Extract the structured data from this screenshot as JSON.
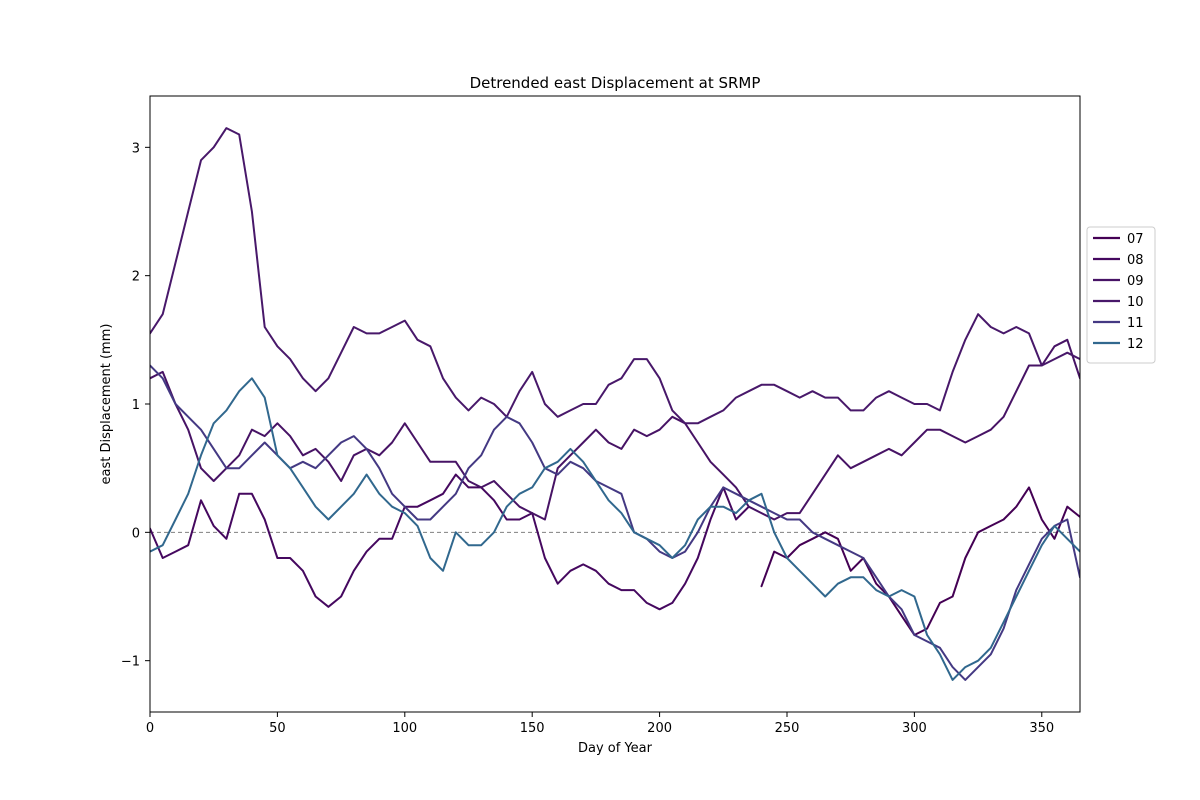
{
  "chart_data": {
    "type": "line",
    "title": "Detrended east Displacement at SRMP",
    "xlabel": "Day of Year",
    "ylabel": "east Displacement (mm)",
    "xlim": [
      0,
      365
    ],
    "ylim": [
      -1.4,
      3.4
    ],
    "xticks": [
      0,
      50,
      100,
      150,
      200,
      250,
      300,
      350
    ],
    "yticks": [
      -1,
      0,
      1,
      2,
      3
    ],
    "ytick_labels": [
      "−1",
      "0",
      "1",
      "2",
      "3"
    ],
    "zero_line": true,
    "grid": false,
    "legend_position": "right",
    "series": [
      {
        "name": "07",
        "color": "#440154",
        "x": [
          240,
          245,
          250,
          255,
          260,
          265,
          270,
          275,
          280,
          285,
          290,
          295,
          300,
          305,
          310,
          315,
          320,
          325,
          330,
          335,
          340,
          345,
          350,
          355,
          360,
          365
        ],
        "y": [
          -0.42,
          -0.15,
          -0.2,
          -0.1,
          -0.05,
          0.0,
          -0.05,
          -0.3,
          -0.2,
          -0.4,
          -0.5,
          -0.65,
          -0.8,
          -0.75,
          -0.55,
          -0.5,
          -0.2,
          0.0,
          0.05,
          0.1,
          0.2,
          0.35,
          0.1,
          -0.05,
          0.2,
          0.12
        ]
      },
      {
        "name": "08",
        "color": "#45085f",
        "x": [
          0,
          5,
          10,
          15,
          20,
          25,
          30,
          35,
          40,
          45,
          50,
          55,
          60,
          65,
          70,
          75,
          80,
          85,
          90,
          95,
          100,
          105,
          110,
          115,
          120,
          125,
          130,
          135,
          140,
          145,
          150,
          155,
          160,
          165,
          170,
          175,
          180,
          185,
          190,
          195,
          200,
          205,
          210,
          215,
          220,
          225,
          230,
          235
        ],
        "y": [
          0.03,
          -0.2,
          -0.15,
          -0.1,
          0.25,
          0.05,
          -0.05,
          0.3,
          0.3,
          0.1,
          -0.2,
          -0.2,
          -0.3,
          -0.5,
          -0.58,
          -0.5,
          -0.3,
          -0.15,
          -0.05,
          -0.05,
          0.2,
          0.2,
          0.25,
          0.3,
          0.45,
          0.35,
          0.35,
          0.25,
          0.1,
          0.1,
          0.15,
          -0.2,
          -0.4,
          -0.3,
          -0.25,
          -0.3,
          -0.4,
          -0.45,
          -0.45,
          -0.55,
          -0.6,
          -0.55,
          -0.4,
          -0.2,
          0.1,
          0.35,
          0.1,
          0.2
        ]
      },
      {
        "name": "09",
        "color": "#471365",
        "x": [
          0,
          5,
          10,
          15,
          20,
          25,
          30,
          35,
          40,
          45,
          50,
          55,
          60,
          65,
          70,
          75,
          80,
          85,
          90,
          95,
          100,
          105,
          110,
          115,
          120,
          125,
          130,
          135,
          140,
          145,
          150,
          155,
          160,
          165,
          170,
          175,
          180,
          185,
          190,
          195,
          200,
          205,
          210,
          215,
          220,
          225,
          230,
          235,
          240,
          245,
          250,
          255,
          260,
          265,
          270,
          275,
          280,
          285,
          290,
          295,
          300,
          305,
          310,
          315,
          320,
          325,
          330,
          335,
          340,
          345,
          350,
          355,
          360,
          365
        ],
        "y": [
          1.2,
          1.25,
          1.0,
          0.8,
          0.5,
          0.4,
          0.5,
          0.6,
          0.8,
          0.75,
          0.85,
          0.75,
          0.6,
          0.65,
          0.55,
          0.4,
          0.6,
          0.65,
          0.6,
          0.7,
          0.85,
          0.7,
          0.55,
          0.55,
          0.55,
          0.4,
          0.35,
          0.4,
          0.3,
          0.2,
          0.15,
          0.1,
          0.5,
          0.6,
          0.7,
          0.8,
          0.7,
          0.65,
          0.8,
          0.75,
          0.8,
          0.9,
          0.85,
          0.7,
          0.55,
          0.45,
          0.35,
          0.2,
          0.15,
          0.1,
          0.15,
          0.15,
          0.3,
          0.45,
          0.6,
          0.5,
          0.55,
          0.6,
          0.65,
          0.6,
          0.7,
          0.8,
          0.8,
          0.75,
          0.7,
          0.75,
          0.8,
          0.9,
          1.1,
          1.3,
          1.3,
          1.45,
          1.5,
          1.2
        ]
      },
      {
        "name": "10",
        "color": "#48186a",
        "x": [
          0,
          5,
          10,
          15,
          20,
          25,
          30,
          35,
          40,
          45,
          50,
          55,
          60,
          65,
          70,
          75,
          80,
          85,
          90,
          95,
          100,
          105,
          110,
          115,
          120,
          125,
          130,
          135,
          140,
          145,
          150,
          155,
          160,
          165,
          170,
          175,
          180,
          185,
          190,
          195,
          200,
          205,
          210,
          215,
          220,
          225,
          230,
          235,
          240,
          245,
          250,
          255,
          260,
          265,
          270,
          275,
          280,
          285,
          290,
          295,
          300,
          305,
          310,
          315,
          320,
          325,
          330,
          335,
          340,
          345,
          350,
          355,
          360,
          365
        ],
        "y": [
          1.55,
          1.7,
          2.1,
          2.5,
          2.9,
          3.0,
          3.15,
          3.1,
          2.5,
          1.6,
          1.45,
          1.35,
          1.2,
          1.1,
          1.2,
          1.4,
          1.6,
          1.55,
          1.55,
          1.6,
          1.65,
          1.5,
          1.45,
          1.2,
          1.05,
          0.95,
          1.05,
          1.0,
          0.9,
          1.1,
          1.25,
          1.0,
          0.9,
          0.95,
          1.0,
          1.0,
          1.15,
          1.2,
          1.35,
          1.35,
          1.2,
          0.95,
          0.85,
          0.85,
          0.9,
          0.95,
          1.05,
          1.1,
          1.15,
          1.15,
          1.1,
          1.05,
          1.1,
          1.05,
          1.05,
          0.95,
          0.95,
          1.05,
          1.1,
          1.05,
          1.0,
          1.0,
          0.95,
          1.25,
          1.5,
          1.7,
          1.6,
          1.55,
          1.6,
          1.55,
          1.3,
          1.35,
          1.4,
          1.35
        ]
      },
      {
        "name": "11",
        "color": "#443983",
        "x": [
          0,
          5,
          10,
          15,
          20,
          25,
          30,
          35,
          40,
          45,
          50,
          55,
          60,
          65,
          70,
          75,
          80,
          85,
          90,
          95,
          100,
          105,
          110,
          115,
          120,
          125,
          130,
          135,
          140,
          145,
          150,
          155,
          160,
          165,
          170,
          175,
          180,
          185,
          190,
          195,
          200,
          205,
          210,
          215,
          220,
          225,
          230,
          235,
          240,
          245,
          250,
          255,
          260,
          265,
          270,
          275,
          280,
          285,
          290,
          295,
          300,
          305,
          310,
          315,
          320,
          325,
          330,
          335,
          340,
          345,
          350,
          355,
          360,
          365
        ],
        "y": [
          1.3,
          1.2,
          1.0,
          0.9,
          0.8,
          0.65,
          0.5,
          0.5,
          0.6,
          0.7,
          0.6,
          0.5,
          0.55,
          0.5,
          0.6,
          0.7,
          0.75,
          0.65,
          0.5,
          0.3,
          0.2,
          0.1,
          0.1,
          0.2,
          0.3,
          0.5,
          0.6,
          0.8,
          0.9,
          0.85,
          0.7,
          0.5,
          0.45,
          0.55,
          0.5,
          0.4,
          0.35,
          0.3,
          0.0,
          -0.05,
          -0.15,
          -0.2,
          -0.15,
          0.0,
          0.2,
          0.35,
          0.3,
          0.25,
          0.2,
          0.15,
          0.1,
          0.1,
          0.0,
          -0.05,
          -0.1,
          -0.15,
          -0.2,
          -0.35,
          -0.5,
          -0.6,
          -0.8,
          -0.85,
          -0.9,
          -1.05,
          -1.15,
          -1.05,
          -0.95,
          -0.75,
          -0.45,
          -0.25,
          -0.05,
          0.05,
          0.1,
          -0.35
        ]
      },
      {
        "name": "12",
        "color": "#31688e",
        "x": [
          0,
          5,
          10,
          15,
          20,
          25,
          30,
          35,
          40,
          45,
          50,
          55,
          60,
          65,
          70,
          75,
          80,
          85,
          90,
          95,
          100,
          105,
          110,
          115,
          120,
          125,
          130,
          135,
          140,
          145,
          150,
          155,
          160,
          165,
          170,
          175,
          180,
          185,
          190,
          195,
          200,
          205,
          210,
          215,
          220,
          225,
          230,
          235,
          240,
          245,
          250,
          255,
          260,
          265,
          270,
          275,
          280,
          285,
          290,
          295,
          300,
          305,
          310,
          315,
          320,
          325,
          330,
          335,
          340,
          345,
          350,
          355,
          360,
          365
        ],
        "y": [
          -0.15,
          -0.1,
          0.1,
          0.3,
          0.6,
          0.85,
          0.95,
          1.1,
          1.2,
          1.05,
          0.6,
          0.5,
          0.35,
          0.2,
          0.1,
          0.2,
          0.3,
          0.45,
          0.3,
          0.2,
          0.15,
          0.05,
          -0.2,
          -0.3,
          0.0,
          -0.1,
          -0.1,
          0.0,
          0.2,
          0.3,
          0.35,
          0.5,
          0.55,
          0.65,
          0.55,
          0.4,
          0.25,
          0.15,
          0.0,
          -0.05,
          -0.1,
          -0.2,
          -0.1,
          0.1,
          0.2,
          0.2,
          0.15,
          0.25,
          0.3,
          0.0,
          -0.2,
          -0.3,
          -0.4,
          -0.5,
          -0.4,
          -0.35,
          -0.35,
          -0.45,
          -0.5,
          -0.45,
          -0.5,
          -0.8,
          -0.95,
          -1.15,
          -1.05,
          -1.0,
          -0.9,
          -0.7,
          -0.5,
          -0.3,
          -0.1,
          0.05,
          -0.05,
          -0.15
        ]
      }
    ]
  }
}
